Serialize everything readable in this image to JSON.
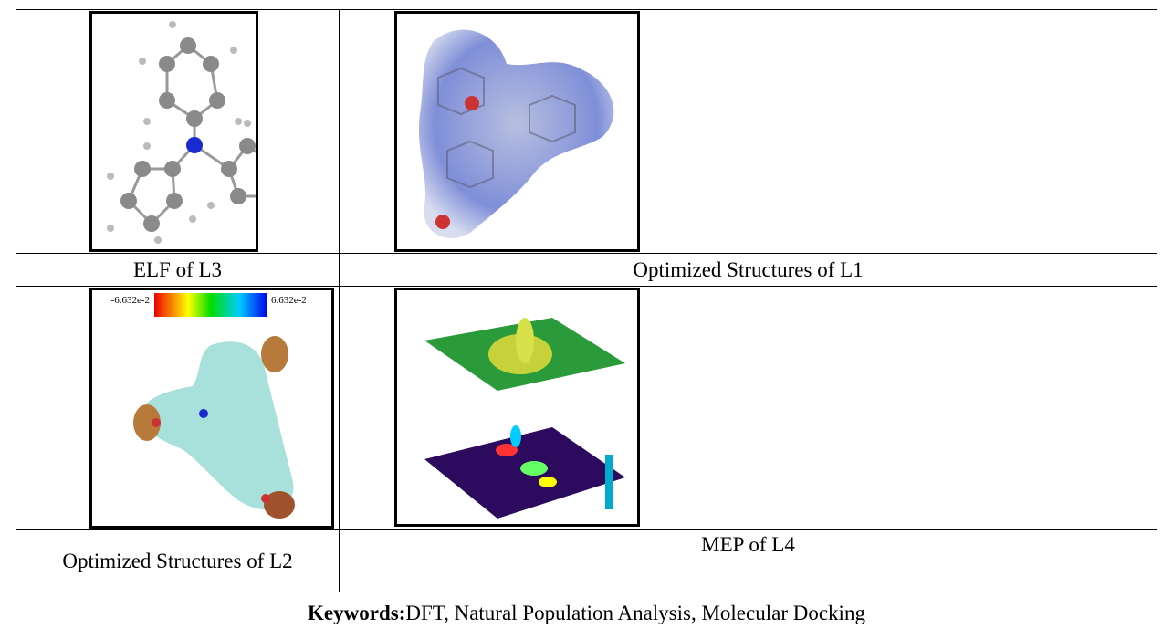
{
  "figures": [
    {
      "caption": "ELF of L3"
    },
    {
      "caption": "Optimized Structures of L1"
    },
    {
      "caption": "Optimized Structures of L2",
      "colorbar": {
        "min_label": "-6.632e-2",
        "max_label": "6.632e-2"
      }
    },
    {
      "caption": "MEP of L4"
    }
  ],
  "keywords": {
    "label": "Keywords:",
    "text": "DFT, Natural Population Analysis, Molecular Docking"
  }
}
